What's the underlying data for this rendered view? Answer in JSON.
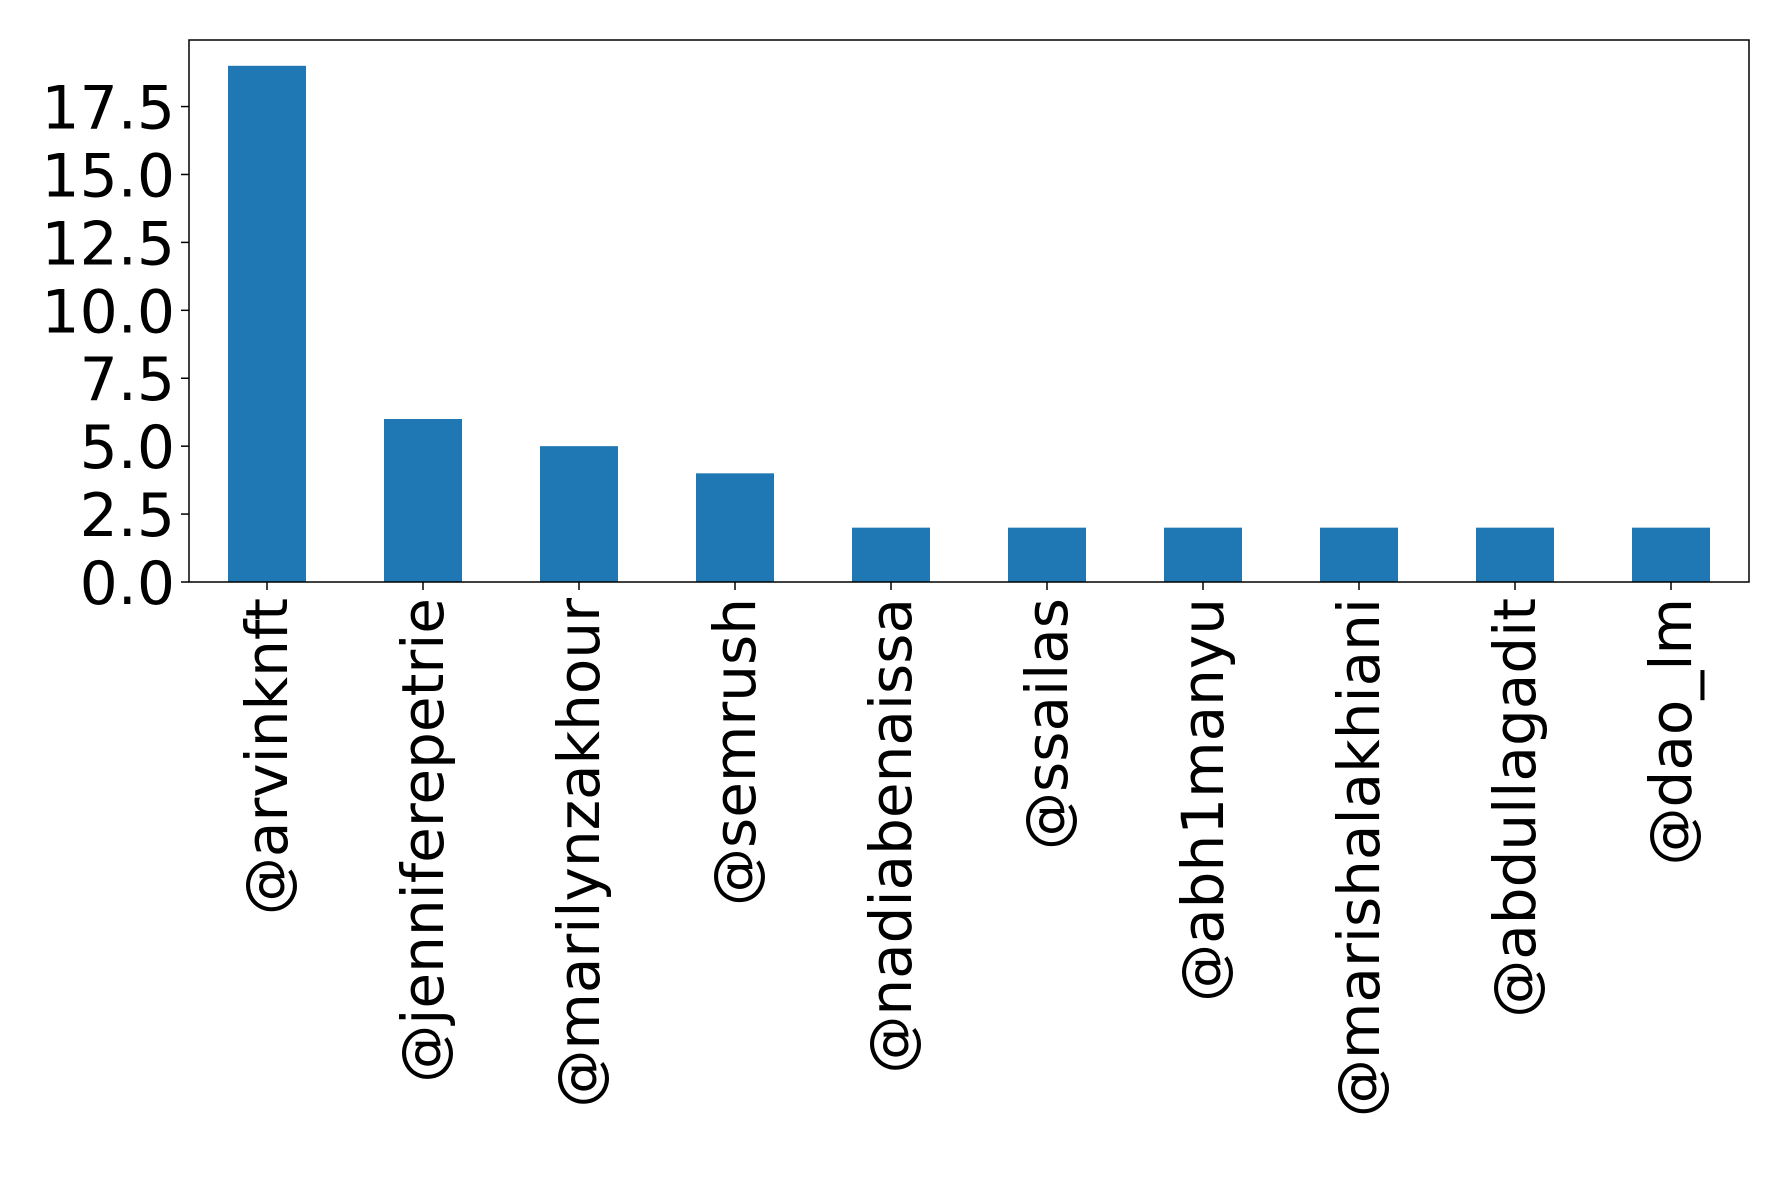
{
  "chart_data": {
    "type": "bar",
    "title": "",
    "xlabel": "",
    "ylabel": "",
    "categories": [
      "@arvinknft",
      "@jenniferepetrie",
      "@marilynzakhour",
      "@semrush",
      "@nadiabenaissa",
      "@ssailas",
      "@abh1manyu",
      "@marishalakhiani",
      "@abdullagadit",
      "@dao_lm"
    ],
    "values": [
      19,
      6,
      5,
      4,
      2,
      2,
      2,
      2,
      2,
      2
    ],
    "ylim": [
      0,
      19.95
    ],
    "yticks": [
      0,
      2.5,
      5,
      7.5,
      10,
      12.5,
      15,
      17.5
    ],
    "ytick_labels": [
      "0.0",
      "2.5",
      "5.0",
      "7.5",
      "10.0",
      "12.5",
      "15.0",
      "17.5"
    ],
    "bar_color": "#1f77b4",
    "grid": false,
    "legend": "none"
  }
}
